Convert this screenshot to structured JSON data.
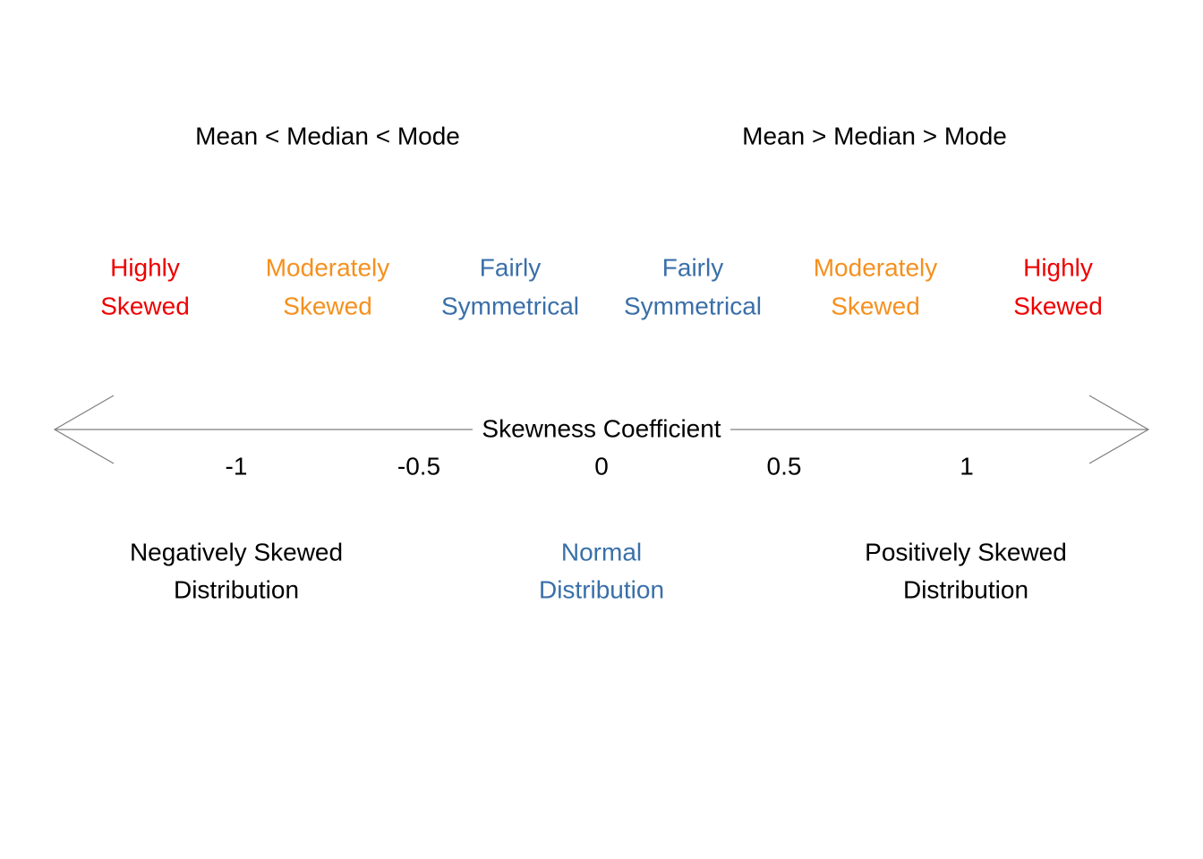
{
  "colors": {
    "text": "#000000",
    "axis": "#7f7f7f",
    "highly_skewed": "#ee0000",
    "moderately_skewed": "#f5901e",
    "fairly_symmetrical": "#3a6fa8",
    "normal": "#3a6fa8"
  },
  "relations": {
    "left": "Mean < Median < Mode",
    "right": "Mean > Median > Mode"
  },
  "categories": [
    {
      "id": "highly-negative",
      "line1": "Highly",
      "line2": "Skewed",
      "color_key": "highly_skewed"
    },
    {
      "id": "moderately-negative",
      "line1": "Moderately",
      "line2": "Skewed",
      "color_key": "moderately_skewed"
    },
    {
      "id": "fairly-negative",
      "line1": "Fairly",
      "line2": "Symmetrical",
      "color_key": "fairly_symmetrical"
    },
    {
      "id": "fairly-positive",
      "line1": "Fairly",
      "line2": "Symmetrical",
      "color_key": "fairly_symmetrical"
    },
    {
      "id": "moderately-positive",
      "line1": "Moderately",
      "line2": "Skewed",
      "color_key": "moderately_skewed"
    },
    {
      "id": "highly-positive",
      "line1": "Highly",
      "line2": "Skewed",
      "color_key": "highly_skewed"
    }
  ],
  "axis": {
    "label": "Skewness Coefficient",
    "direction": "double-headed arrow",
    "ticks": [
      {
        "value": -1,
        "label": "-1"
      },
      {
        "value": -0.5,
        "label": "-0.5"
      },
      {
        "value": 0,
        "label": "0"
      },
      {
        "value": 0.5,
        "label": "0.5"
      },
      {
        "value": 1,
        "label": "1"
      }
    ]
  },
  "distributions": {
    "negative": {
      "line1": "Negatively Skewed",
      "line2": "Distribution"
    },
    "normal": {
      "line1": "Normal",
      "line2": "Distribution"
    },
    "positive": {
      "line1": "Positively Skewed",
      "line2": "Distribution"
    }
  }
}
